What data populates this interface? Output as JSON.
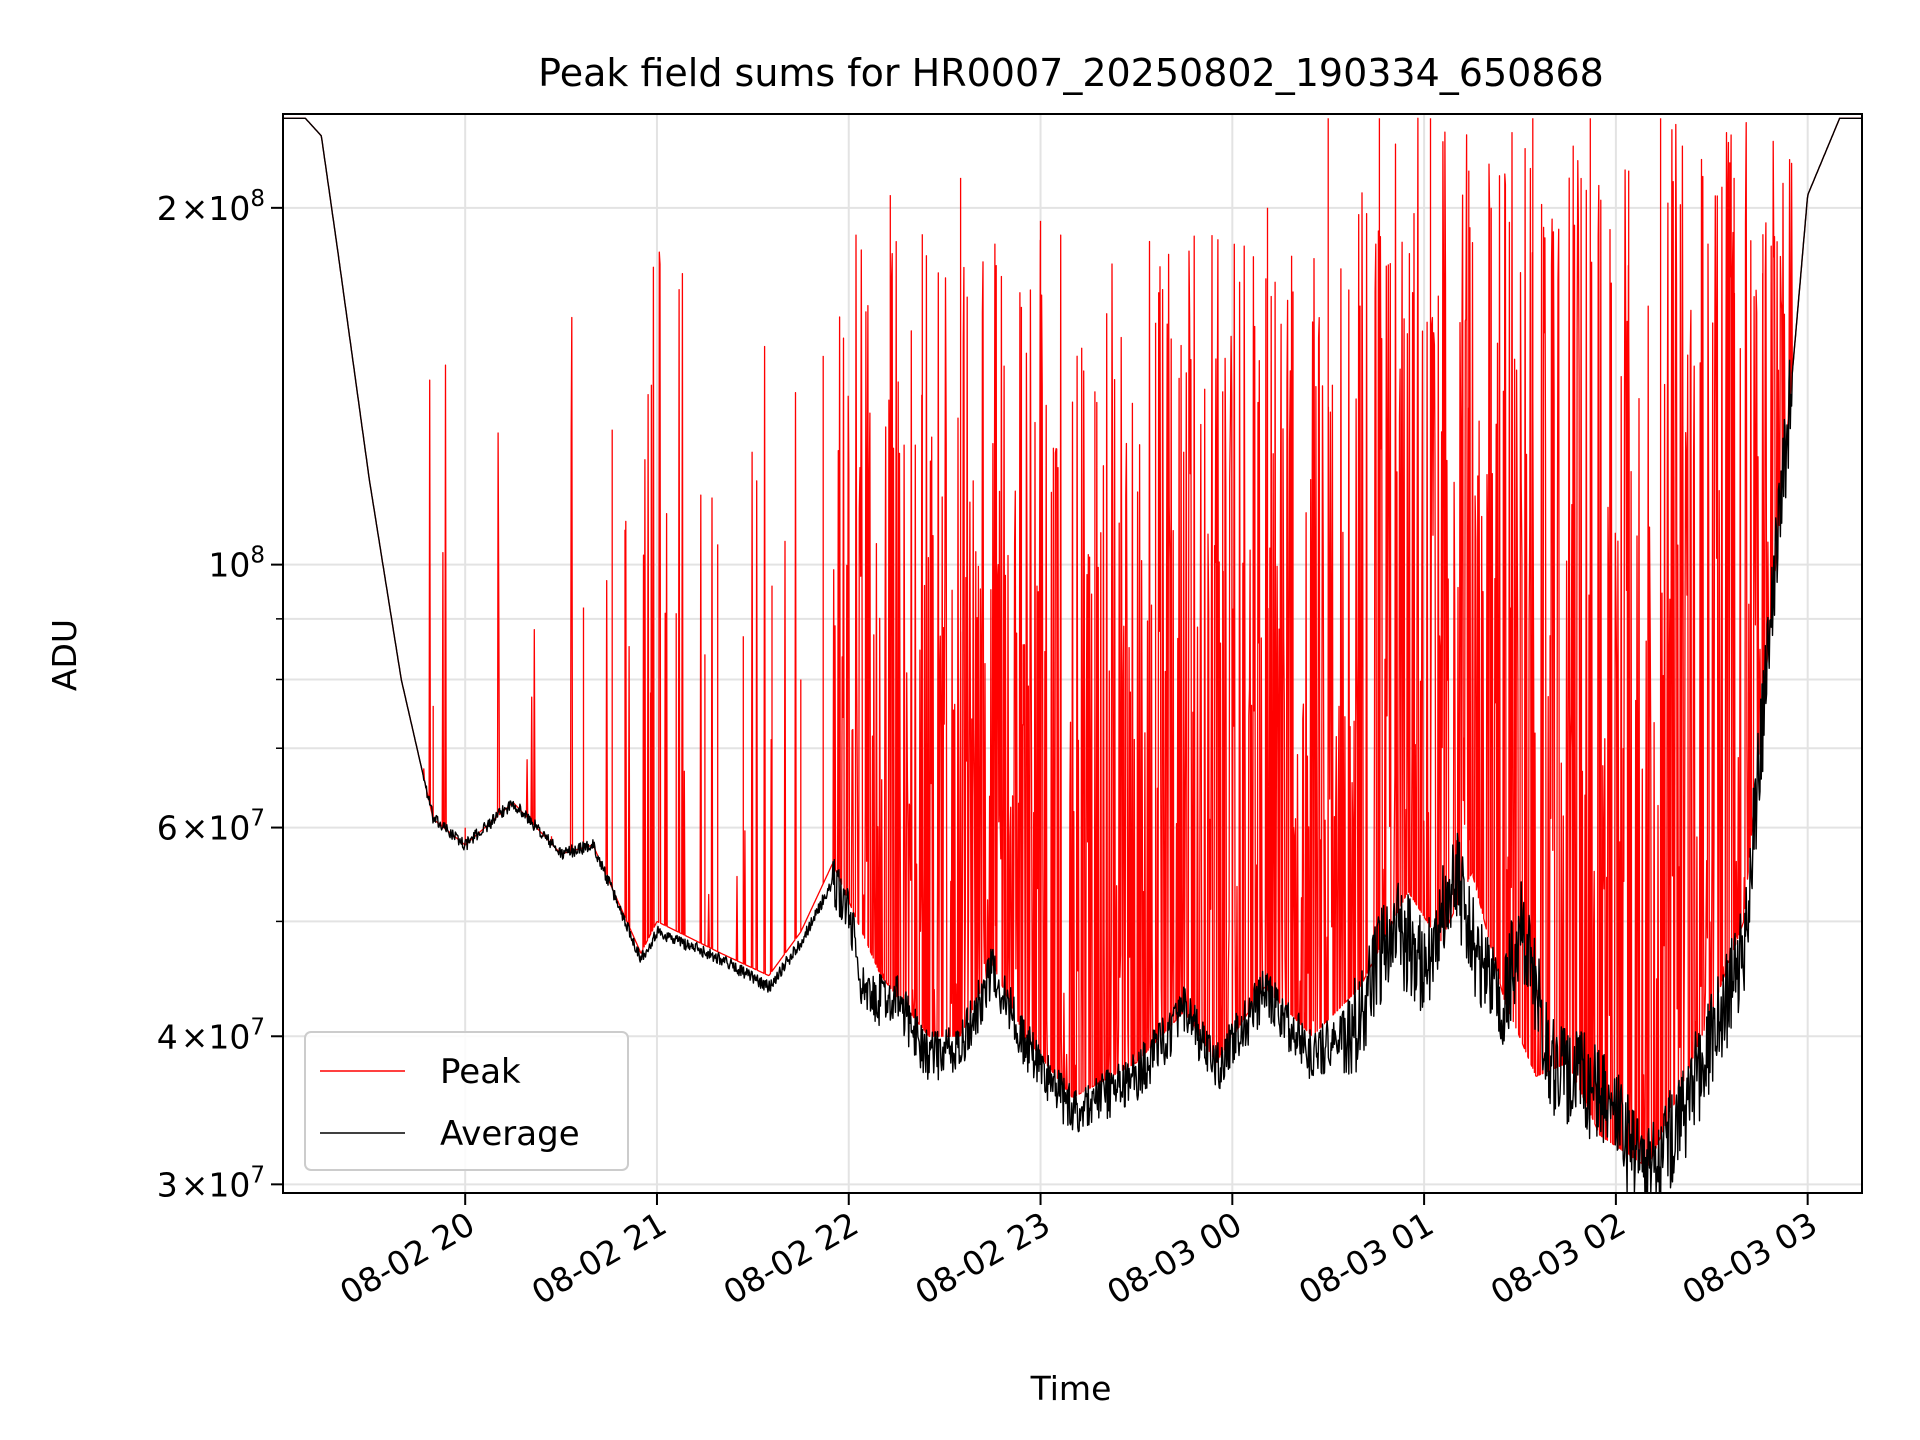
{
  "chart_data": {
    "type": "line",
    "title": "Peak field sums for HR0007_20250802_190334_650868",
    "xlabel": "Time",
    "ylabel": "ADU",
    "x_range": [
      "2025-08-02 19:03",
      "2025-08-03 03:17"
    ],
    "y_range": [
      29500000,
      240000000
    ],
    "y_scale": "log",
    "grid": true,
    "legend_position": "lower-left",
    "x_ticks": [
      {
        "t": "2025-08-02 20:00",
        "label": "08-02 20"
      },
      {
        "t": "2025-08-02 21:00",
        "label": "08-02 21"
      },
      {
        "t": "2025-08-02 22:00",
        "label": "08-02 22"
      },
      {
        "t": "2025-08-02 23:00",
        "label": "08-02 23"
      },
      {
        "t": "2025-08-03 00:00",
        "label": "08-03 00"
      },
      {
        "t": "2025-08-03 01:00",
        "label": "08-03 01"
      },
      {
        "t": "2025-08-03 02:00",
        "label": "08-03 02"
      },
      {
        "t": "2025-08-03 03:00",
        "label": "08-03 03"
      }
    ],
    "y_major_ticks": [
      {
        "value": 30000000,
        "mant": "3",
        "exp": "7"
      },
      {
        "value": 40000000,
        "mant": "4",
        "exp": "7"
      },
      {
        "value": 60000000,
        "mant": "6",
        "exp": "7"
      },
      {
        "value": 100000000,
        "mant": "",
        "exp": "8"
      },
      {
        "value": 200000000,
        "mant": "2",
        "exp": "8"
      }
    ],
    "y_minor_ticks": [
      50000000,
      70000000,
      80000000,
      90000000
    ],
    "series": [
      {
        "name": "Peak",
        "color": "#ff0000",
        "baseline": [
          [
            "2025-08-02 19:03",
            238000000
          ],
          [
            "2025-08-02 19:10",
            238000000
          ],
          [
            "2025-08-02 19:15",
            230000000
          ],
          [
            "2025-08-02 19:20",
            185000000
          ],
          [
            "2025-08-02 19:30",
            118000000
          ],
          [
            "2025-08-02 19:40",
            80000000
          ],
          [
            "2025-08-02 19:50",
            61000000
          ],
          [
            "2025-08-02 20:00",
            58000000
          ],
          [
            "2025-08-02 20:15",
            63000000
          ],
          [
            "2025-08-02 20:30",
            57000000
          ],
          [
            "2025-08-02 20:40",
            58000000
          ],
          [
            "2025-08-02 20:55",
            47000000
          ],
          [
            "2025-08-02 21:00",
            50000000
          ],
          [
            "2025-08-02 21:20",
            47000000
          ],
          [
            "2025-08-02 21:35",
            45000000
          ],
          [
            "2025-08-02 21:45",
            49000000
          ],
          [
            "2025-08-02 21:55",
            56000000
          ],
          [
            "2025-08-02 22:00",
            52000000
          ],
          [
            "2025-08-02 22:10",
            45000000
          ],
          [
            "2025-08-02 22:25",
            40000000
          ],
          [
            "2025-08-02 22:35",
            40000000
          ],
          [
            "2025-08-02 22:45",
            46000000
          ],
          [
            "2025-08-02 22:55",
            40000000
          ],
          [
            "2025-08-02 23:10",
            35500000
          ],
          [
            "2025-08-02 23:30",
            38000000
          ],
          [
            "2025-08-02 23:45",
            42000000
          ],
          [
            "2025-08-02 23:55",
            38000000
          ],
          [
            "2025-08-03 00:10",
            44000000
          ],
          [
            "2025-08-03 00:25",
            40000000
          ],
          [
            "2025-08-03 00:40",
            44000000
          ],
          [
            "2025-08-03 00:55",
            53000000
          ],
          [
            "2025-08-03 01:05",
            48000000
          ],
          [
            "2025-08-03 01:15",
            55000000
          ],
          [
            "2025-08-03 01:25",
            43000000
          ],
          [
            "2025-08-03 01:35",
            37000000
          ],
          [
            "2025-08-03 01:45",
            38000000
          ],
          [
            "2025-08-03 01:55",
            33000000
          ],
          [
            "2025-08-03 02:10",
            31000000
          ],
          [
            "2025-08-03 02:20",
            36000000
          ],
          [
            "2025-08-03 02:30",
            42000000
          ],
          [
            "2025-08-03 02:40",
            50000000
          ],
          [
            "2025-08-03 02:50",
            100000000
          ],
          [
            "2025-08-03 03:00",
            205000000
          ],
          [
            "2025-08-03 03:10",
            238000000
          ],
          [
            "2025-08-03 03:17",
            238000000
          ]
        ],
        "spikes": [
          [
            "2025-08-02 19:50",
            76000000
          ],
          [
            "2025-08-02 20:00",
            60000000
          ],
          [
            "2025-08-02 20:27",
            59000000
          ],
          [
            "2025-08-02 20:37",
            92000000
          ],
          [
            "2025-08-02 20:46",
            130000000
          ],
          [
            "2025-08-02 20:50",
            107000000
          ],
          [
            "2025-08-02 20:58",
            78000000
          ],
          [
            "2025-08-02 21:06",
            91000000
          ],
          [
            "2025-08-02 21:15",
            84000000
          ],
          [
            "2025-08-02 21:19",
            104000000
          ],
          [
            "2025-08-02 21:27",
            87000000
          ],
          [
            "2025-08-02 21:36",
            96000000
          ],
          [
            "2025-08-02 21:45",
            80000000
          ],
          [
            "2025-08-02 21:52",
            150000000
          ],
          [
            "2025-08-02 22:06",
            125000000
          ],
          [
            "2025-08-02 22:13",
            205000000
          ],
          [
            "2025-08-02 22:23",
            190000000
          ],
          [
            "2025-08-02 22:35",
            212000000
          ],
          [
            "2025-08-02 22:46",
            150000000
          ],
          [
            "2025-08-02 22:54",
            165000000
          ],
          [
            "2025-08-02 23:00",
            195000000
          ],
          [
            "2025-08-02 23:17",
            140000000
          ],
          [
            "2025-08-02 23:36",
            160000000
          ],
          [
            "2025-08-02 23:57",
            140000000
          ],
          [
            "2025-08-03 00:11",
            200000000
          ],
          [
            "2025-08-03 00:19",
            170000000
          ],
          [
            "2025-08-03 00:30",
            238000000
          ],
          [
            "2025-08-03 00:46",
            238000000
          ],
          [
            "2025-08-03 01:02",
            238000000
          ],
          [
            "2025-08-03 01:14",
            215000000
          ],
          [
            "2025-08-03 01:21",
            200000000
          ],
          [
            "2025-08-03 01:34",
            238000000
          ],
          [
            "2025-08-03 01:52",
            238000000
          ],
          [
            "2025-08-03 02:04",
            215000000
          ],
          [
            "2025-08-03 02:14",
            238000000
          ],
          [
            "2025-08-03 02:27",
            208000000
          ],
          [
            "2025-08-03 02:37",
            212000000
          ],
          [
            "2025-08-03 02:46",
            190000000
          ]
        ]
      },
      {
        "name": "Average",
        "color": "#000000",
        "baseline": [
          [
            "2025-08-02 19:03",
            238000000
          ],
          [
            "2025-08-02 19:10",
            238000000
          ],
          [
            "2025-08-02 19:15",
            230000000
          ],
          [
            "2025-08-02 19:20",
            185000000
          ],
          [
            "2025-08-02 19:30",
            118000000
          ],
          [
            "2025-08-02 19:40",
            80000000
          ],
          [
            "2025-08-02 19:50",
            61000000
          ],
          [
            "2025-08-02 20:00",
            58000000
          ],
          [
            "2025-08-02 20:15",
            63000000
          ],
          [
            "2025-08-02 20:30",
            57000000
          ],
          [
            "2025-08-02 20:40",
            58000000
          ],
          [
            "2025-08-02 20:55",
            46500000
          ],
          [
            "2025-08-02 21:00",
            49000000
          ],
          [
            "2025-08-02 21:20",
            46500000
          ],
          [
            "2025-08-02 21:35",
            44000000
          ],
          [
            "2025-08-02 21:45",
            48000000
          ],
          [
            "2025-08-02 21:55",
            54000000
          ],
          [
            "2025-08-02 22:00",
            51000000
          ],
          [
            "2025-08-02 22:05",
            43000000
          ],
          [
            "2025-08-02 22:15",
            43000000
          ],
          [
            "2025-08-02 22:25",
            38500000
          ],
          [
            "2025-08-02 22:35",
            39000000
          ],
          [
            "2025-08-02 22:45",
            45500000
          ],
          [
            "2025-08-02 22:55",
            39500000
          ],
          [
            "2025-08-02 23:10",
            34500000
          ],
          [
            "2025-08-02 23:30",
            37000000
          ],
          [
            "2025-08-02 23:45",
            42000000
          ],
          [
            "2025-08-02 23:55",
            37500000
          ],
          [
            "2025-08-03 00:10",
            43500000
          ],
          [
            "2025-08-03 00:25",
            38500000
          ],
          [
            "2025-08-03 00:40",
            41000000
          ],
          [
            "2025-08-03 00:50",
            50000000
          ],
          [
            "2025-08-03 01:00",
            46000000
          ],
          [
            "2025-08-03 01:10",
            55000000
          ],
          [
            "2025-08-03 01:15",
            48000000
          ],
          [
            "2025-08-03 01:25",
            42000000
          ],
          [
            "2025-08-03 01:30",
            50000000
          ],
          [
            "2025-08-03 01:40",
            38000000
          ],
          [
            "2025-08-03 01:55",
            36000000
          ],
          [
            "2025-08-03 02:10",
            30500000
          ],
          [
            "2025-08-03 02:20",
            34000000
          ],
          [
            "2025-08-03 02:30",
            40000000
          ],
          [
            "2025-08-03 02:40",
            47000000
          ],
          [
            "2025-08-03 02:50",
            100000000
          ],
          [
            "2025-08-03 03:00",
            205000000
          ],
          [
            "2025-08-03 03:10",
            238000000
          ],
          [
            "2025-08-03 03:17",
            238000000
          ]
        ]
      }
    ]
  }
}
